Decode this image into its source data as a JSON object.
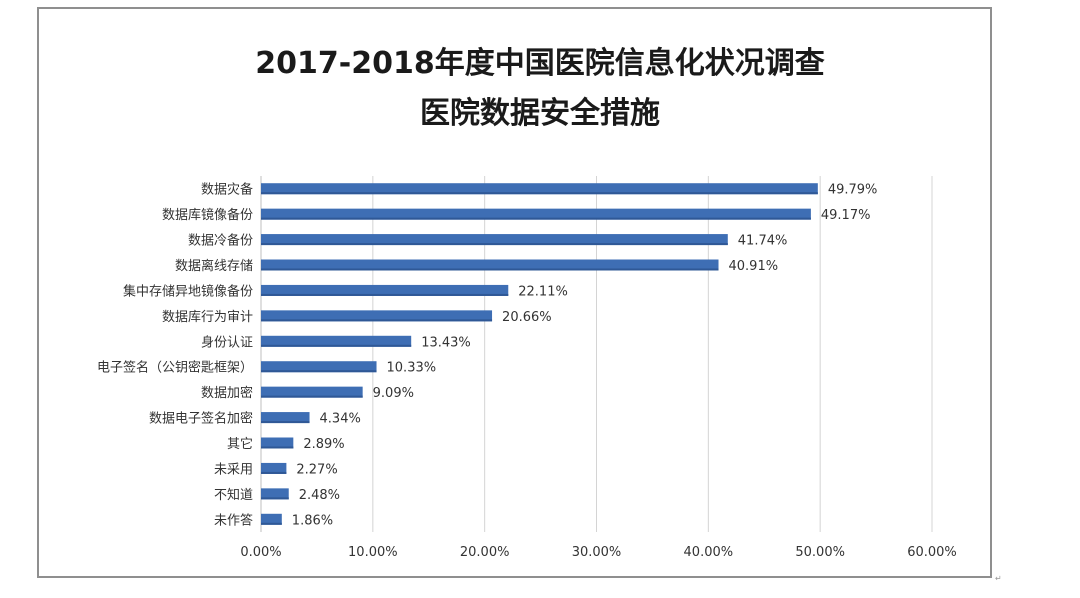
{
  "chart_data": {
    "type": "bar",
    "orientation": "horizontal",
    "title": "2017-2018年度中国医院信息化状况调查",
    "subtitle": "医院数据安全措施",
    "categories": [
      "数据灾备",
      "数据库镜像备份",
      "数据冷备份",
      "数据离线存储",
      "集中存储异地镜像备份",
      "数据库行为审计",
      "身份认证",
      "电子签名（公钥密匙框架）",
      "数据加密",
      "数据电子签名加密",
      "其它",
      "未采用",
      "不知道",
      "未作答"
    ],
    "values": [
      49.79,
      49.17,
      41.74,
      40.91,
      22.11,
      20.66,
      13.43,
      10.33,
      9.09,
      4.34,
      2.89,
      2.27,
      2.48,
      1.86
    ],
    "value_labels": [
      "49.79%",
      "49.17%",
      "41.74%",
      "40.91%",
      "22.11%",
      "20.66%",
      "13.43%",
      "10.33%",
      "9.09%",
      "4.34%",
      "2.89%",
      "2.27%",
      "2.48%",
      "1.86%"
    ],
    "xlim": [
      0,
      60
    ],
    "x_ticks": [
      0,
      10,
      20,
      30,
      40,
      50,
      60
    ],
    "x_tick_labels": [
      "0.00%",
      "10.00%",
      "20.00%",
      "30.00%",
      "40.00%",
      "50.00%",
      "60.00%"
    ],
    "grid": true,
    "bar_color": "#3e6eb4",
    "xlabel": "",
    "ylabel": ""
  }
}
